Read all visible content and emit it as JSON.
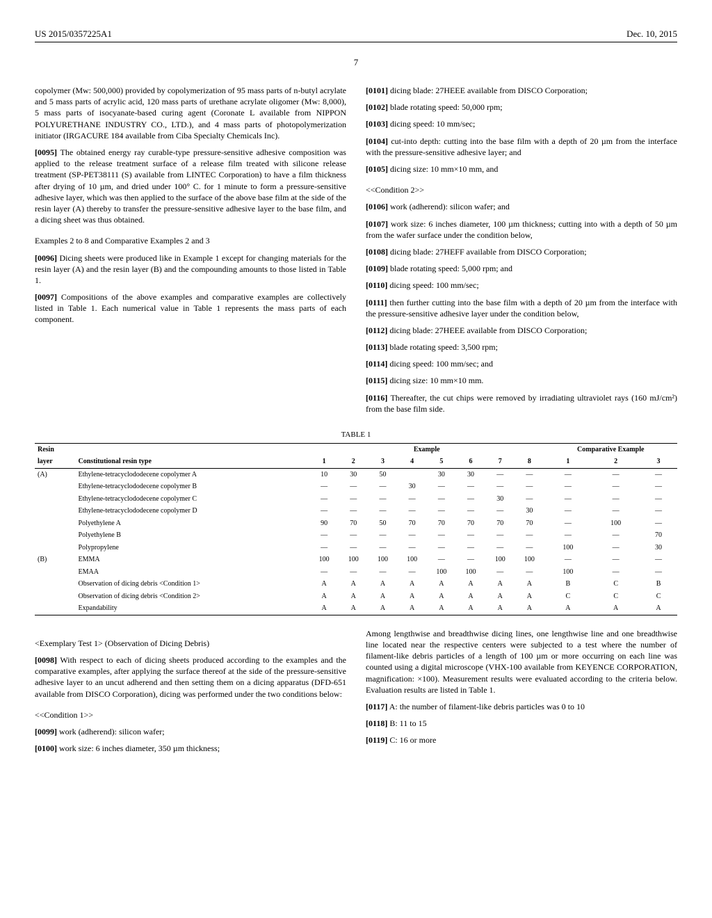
{
  "header": {
    "pub_number": "US 2015/0357225A1",
    "date": "Dec. 10, 2015",
    "page": "7"
  },
  "left_col": {
    "p0": "copolymer (Mw: 500,000) provided by copolymerization of 95 mass parts of n-butyl acrylate and 5 mass parts of acrylic acid, 120 mass parts of urethane acrylate oligomer (Mw: 8,000), 5 mass parts of isocyanate-based curing agent (Coronate L available from NIPPON POLYURETHANE INDUSTRY CO., LTD.), and 4 mass parts of photopolymerization initiator (IRGACURE 184 available from Ciba Specialty Chemicals Inc).",
    "p95_num": "[0095]",
    "p95": "The obtained energy ray curable-type pressure-sensitive adhesive composition was applied to the release treatment surface of a release film treated with silicone release treatment (SP-PET38111 (S) available from LINTEC Corporation) to have a film thickness after drying of 10 µm, and dried under 100° C. for 1 minute to form a pressure-sensitive adhesive layer, which was then applied to the surface of the above base film at the side of the resin layer (A) thereby to transfer the pressure-sensitive adhesive layer to the base film, and a dicing sheet was thus obtained.",
    "examples_head": "Examples 2 to 8 and Comparative Examples 2 and 3",
    "p96_num": "[0096]",
    "p96": "Dicing sheets were produced like in Example 1 except for changing materials for the resin layer (A) and the resin layer (B) and the compounding amounts to those listed in Table 1.",
    "p97_num": "[0097]",
    "p97": "Compositions of the above examples and comparative examples are collectively listed in Table 1. Each numerical value in Table 1 represents the mass parts of each component."
  },
  "right_col": {
    "p101_num": "[0101]",
    "p101": "dicing blade: 27HEEE available from DISCO Corporation;",
    "p102_num": "[0102]",
    "p102": "blade rotating speed: 50,000 rpm;",
    "p103_num": "[0103]",
    "p103": "dicing speed: 10 mm/sec;",
    "p104_num": "[0104]",
    "p104": "cut-into depth: cutting into the base film with a depth of 20 µm from the interface with the pressure-sensitive adhesive layer; and",
    "p105_num": "[0105]",
    "p105": "dicing size: 10 mm×10 mm, and",
    "cond2": "<<Condition 2>>",
    "p106_num": "[0106]",
    "p106": "work (adherend): silicon wafer; and",
    "p107_num": "[0107]",
    "p107": "work size: 6 inches diameter, 100 µm thickness; cutting into with a depth of 50 µm from the wafer surface under the condition below,",
    "p108_num": "[0108]",
    "p108": "dicing blade: 27HEFF available from DISCO Corporation;",
    "p109_num": "[0109]",
    "p109": "blade rotating speed: 5,000 rpm; and",
    "p110_num": "[0110]",
    "p110": "dicing speed: 100 mm/sec;",
    "p111_num": "[0111]",
    "p111": "then further cutting into the base film with a depth of 20 µm from the interface with the pressure-sensitive adhesive layer under the condition below,",
    "p112_num": "[0112]",
    "p112": "dicing blade: 27HEEE available from DISCO Corporation;",
    "p113_num": "[0113]",
    "p113": "blade rotating speed: 3,500 rpm;",
    "p114_num": "[0114]",
    "p114": "dicing speed: 100 mm/sec; and",
    "p115_num": "[0115]",
    "p115": "dicing size: 10 mm×10 mm.",
    "p116_num": "[0116]",
    "p116": "Thereafter, the cut chips were removed by irradiating ultraviolet rays (160 mJ/cm²) from the base film side."
  },
  "table": {
    "caption": "TABLE 1",
    "group_example": "Example",
    "group_comp": "Comparative Example",
    "head_resin": "Resin",
    "head_layer": "layer",
    "head_type": "Constitutional resin type",
    "cols_ex": [
      "1",
      "2",
      "3",
      "4",
      "5",
      "6",
      "7",
      "8"
    ],
    "cols_ce": [
      "1",
      "2",
      "3"
    ],
    "rows": [
      {
        "layer": "(A)",
        "name": "Ethylene-tetracyclododecene copolymer A",
        "v": [
          "10",
          "30",
          "50",
          "",
          "30",
          "30",
          "—",
          "—",
          "—",
          "—",
          "—"
        ]
      },
      {
        "layer": "",
        "name": "Ethylene-tetracyclododecene copolymer B",
        "v": [
          "—",
          "—",
          "—",
          "30",
          "—",
          "—",
          "—",
          "—",
          "—",
          "—",
          "—"
        ]
      },
      {
        "layer": "",
        "name": "Ethylene-tetracyclododecene copolymer C",
        "v": [
          "—",
          "—",
          "—",
          "—",
          "—",
          "—",
          "30",
          "—",
          "—",
          "—",
          "—"
        ]
      },
      {
        "layer": "",
        "name": "Ethylene-tetracyclododecene copolymer D",
        "v": [
          "—",
          "—",
          "—",
          "—",
          "—",
          "—",
          "—",
          "30",
          "—",
          "—",
          "—"
        ]
      },
      {
        "layer": "",
        "name": "Polyethylene A",
        "v": [
          "90",
          "70",
          "50",
          "70",
          "70",
          "70",
          "70",
          "70",
          "—",
          "100",
          "—"
        ]
      },
      {
        "layer": "",
        "name": "Polyethylene B",
        "v": [
          "—",
          "—",
          "—",
          "—",
          "—",
          "—",
          "—",
          "—",
          "—",
          "—",
          "70"
        ]
      },
      {
        "layer": "",
        "name": "Polypropylene",
        "v": [
          "—",
          "—",
          "—",
          "—",
          "—",
          "—",
          "—",
          "—",
          "100",
          "—",
          "30"
        ]
      },
      {
        "layer": "(B)",
        "name": "EMMA",
        "v": [
          "100",
          "100",
          "100",
          "100",
          "—",
          "—",
          "100",
          "100",
          "—",
          "—",
          "—"
        ]
      },
      {
        "layer": "",
        "name": "EMAA",
        "v": [
          "—",
          "—",
          "—",
          "—",
          "100",
          "100",
          "—",
          "—",
          "100",
          "—",
          "—"
        ]
      },
      {
        "layer": "",
        "name": "Observation of dicing debris <Condition 1>",
        "v": [
          "A",
          "A",
          "A",
          "A",
          "A",
          "A",
          "A",
          "A",
          "B",
          "C",
          "B"
        ]
      },
      {
        "layer": "",
        "name": "Observation of dicing debris <Condition 2>",
        "v": [
          "A",
          "A",
          "A",
          "A",
          "A",
          "A",
          "A",
          "A",
          "C",
          "C",
          "C"
        ]
      },
      {
        "layer": "",
        "name": "Expandability",
        "v": [
          "A",
          "A",
          "A",
          "A",
          "A",
          "A",
          "A",
          "A",
          "A",
          "A",
          "A"
        ]
      }
    ]
  },
  "lower_left": {
    "test_head": "<Exemplary Test 1> (Observation of Dicing Debris)",
    "p98_num": "[0098]",
    "p98": "With respect to each of dicing sheets produced according to the examples and the comparative examples, after applying the surface thereof at the side of the pressure-sensitive adhesive layer to an uncut adherend and then setting them on a dicing apparatus (DFD-651 available from DISCO Corporation), dicing was performed under the two conditions below:",
    "cond1": "<<Condition 1>>",
    "p99_num": "[0099]",
    "p99": "work (adherend): silicon wafer;",
    "p100_num": "[0100]",
    "p100": "work size: 6 inches diameter, 350 µm thickness;"
  },
  "lower_right": {
    "p_cont": "Among lengthwise and breadthwise dicing lines, one lengthwise line and one breadthwise line located near the respective centers were subjected to a test where the number of filament-like debris particles of a length of 100 µm or more occurring on each line was counted using a digital microscope (VHX-100 available from KEYENCE CORPORATION, magnification: ×100). Measurement results were evaluated according to the criteria below. Evaluation results are listed in Table 1.",
    "p117_num": "[0117]",
    "p117": "A: the number of filament-like debris particles was 0 to 10",
    "p118_num": "[0118]",
    "p118": "B: 11 to 15",
    "p119_num": "[0119]",
    "p119": "C: 16 or more"
  }
}
